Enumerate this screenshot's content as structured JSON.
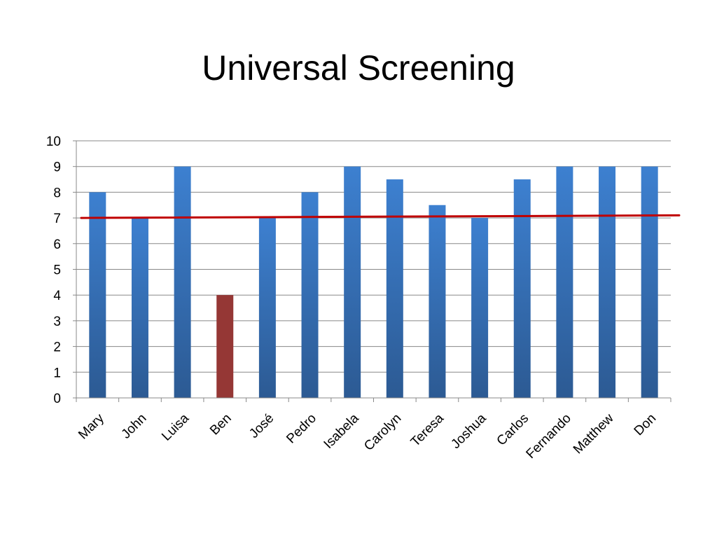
{
  "slide": {
    "title": "Universal Screening"
  },
  "chart_data": {
    "type": "bar",
    "title": "",
    "xlabel": "",
    "ylabel": "",
    "ylim": [
      0,
      10
    ],
    "yticks": [
      0,
      1,
      2,
      3,
      4,
      5,
      6,
      7,
      8,
      9,
      10
    ],
    "grid": true,
    "categories": [
      "Mary",
      "John",
      "Luisa",
      "Ben",
      "José",
      "Pedro",
      "Isabela",
      "Carolyn",
      "Teresa",
      "Joshua",
      "Carlos",
      "Fernando",
      "Matthew",
      "Don"
    ],
    "values": [
      8,
      7,
      9,
      4,
      7,
      8,
      9,
      8.5,
      7.5,
      7,
      8.5,
      9,
      9,
      9
    ],
    "highlighted_category": "Ben",
    "colors": {
      "bar": "#3A78C2",
      "bar_dark": "#2E5E98",
      "highlight": "#953735",
      "threshold_line": "#C00000",
      "grid": "#888888"
    },
    "threshold": {
      "value_start": 7,
      "value_end": 7.1
    }
  }
}
